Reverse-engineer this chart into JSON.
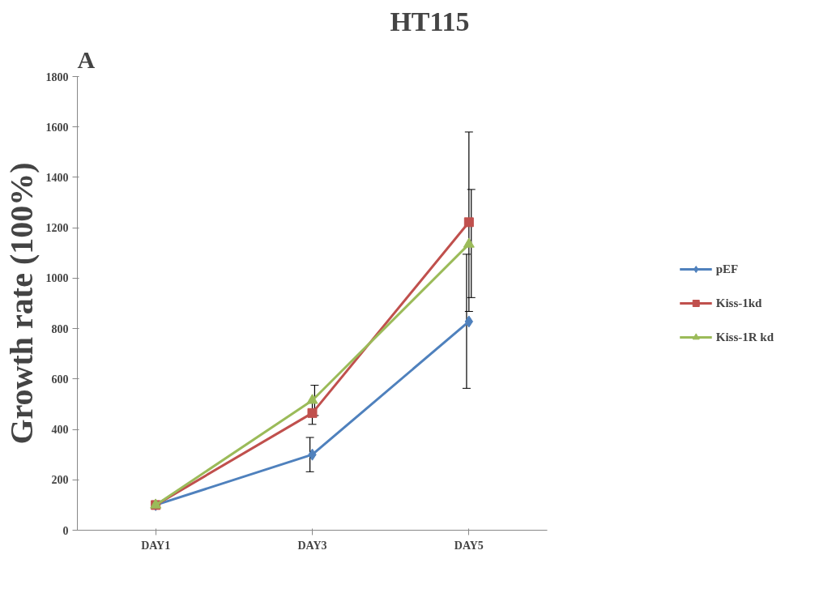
{
  "chart_data": {
    "type": "line",
    "title": "HT115",
    "ylabel": "Growth rate (100%)",
    "annotations": [
      "A"
    ],
    "categories": [
      "DAY1",
      "DAY3",
      "DAY5"
    ],
    "series": [
      {
        "name": "pEF",
        "color": "#4f81bd",
        "marker": "diamond",
        "values": [
          100,
          300,
          828
        ],
        "errors": [
          null,
          [
            232,
            368
          ],
          [
            563,
            1095
          ]
        ]
      },
      {
        "name": "Kiss-1kd",
        "color": "#c0504d",
        "marker": "square",
        "values": [
          100,
          465,
          1222
        ],
        "errors": [
          null,
          [
            420,
            510
          ],
          [
            868,
            1580
          ]
        ]
      },
      {
        "name": "Kiss-1R kd",
        "color": "#9bbb59",
        "marker": "triangle",
        "values": [
          100,
          515,
          1135
        ],
        "errors": [
          null,
          [
            455,
            575
          ],
          [
            923,
            1352
          ]
        ]
      }
    ],
    "ylim": [
      0,
      1800
    ],
    "yticks": [
      0,
      200,
      400,
      600,
      800,
      1000,
      1200,
      1400,
      1600,
      1800
    ],
    "grid": false,
    "legend": "right"
  }
}
